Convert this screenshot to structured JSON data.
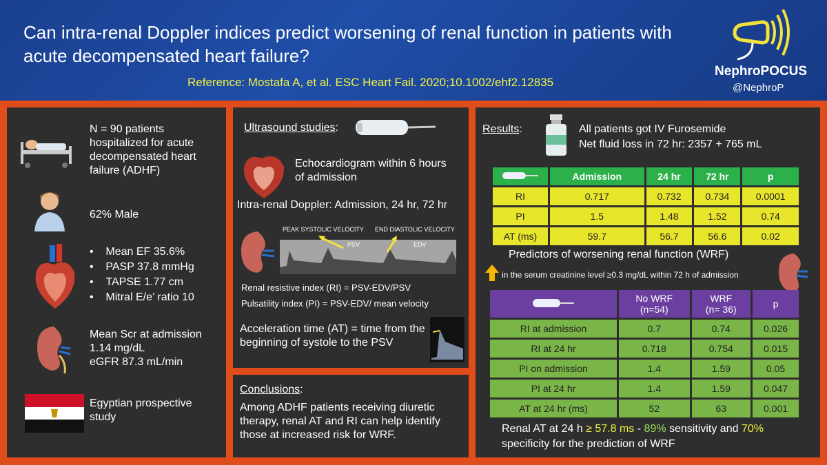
{
  "header": {
    "title": "Can intra-renal Doppler indices predict worsening of renal function in patients with acute decompensated heart failure?",
    "reference": "Reference: Mostafa A, et al. ESC Heart Fail. 2020;10.1002/ehf2.12835",
    "brand": "NephroPOCUS",
    "handle": "@NephroP"
  },
  "patients": {
    "n_text": "N = 90 patients hospitalized for acute decompensated heart failure (ADHF)",
    "male": "62% Male",
    "cardiac": [
      "Mean EF 35.6%",
      "PASP 37.8 mmHg",
      "TAPSE 1.77 cm",
      "Mitral E/e’ ratio 10"
    ],
    "renal": [
      "Mean Scr at admission",
      "1.14 mg/dL",
      "eGFR 87.3 mL/min"
    ],
    "study": "Egyptian prospective study"
  },
  "ultrasound": {
    "heading": "Ultrasound studies",
    "colon": ":",
    "echo": "Echocardiogram within 6 hours of admission",
    "doppler": "Intra-renal Doppler: Admission, 24 hr, 72 hr",
    "psv_label": "PEAK SYSTOLIC VELOCITY",
    "psv_short": "PSV",
    "edv_label": "END DIASTOLIC VELOCITY",
    "edv_short": "EDV",
    "ri": "Renal resistive index (RI) = PSV-EDV/PSV",
    "pi": "Pulsatility index (PI) = PSV-EDV/ mean velocity",
    "at": "Acceleration time (AT) = time from the beginning of systole to the PSV"
  },
  "conclusions": {
    "heading": "Conclusions",
    "colon": ":",
    "text": "Among ADHF patients receiving diuretic therapy, renal AT and RI can help identify those at increased risk for WRF."
  },
  "results": {
    "heading": "Results",
    "colon": ":",
    "line1": "All patients got IV Furosemide",
    "line2": "Net fluid loss in 72 hr: 2357 + 765 mL",
    "table1": {
      "headers": [
        "Admission",
        "24 hr",
        "72 hr",
        "p"
      ],
      "rows": [
        {
          "label": "RI",
          "values": [
            "0.717",
            "0.732",
            "0.734",
            "0.0001"
          ]
        },
        {
          "label": "PI",
          "values": [
            "1.5",
            "1.48",
            "1.52",
            "0.74"
          ]
        },
        {
          "label": "AT (ms)",
          "values": [
            "59.7",
            "56.7",
            "56.6",
            "0.02"
          ]
        }
      ]
    },
    "predictors_title": "Predictors of worsening renal function (WRF)",
    "predictors_note": "in the serum creatinine level ≥0.3 mg/dL within 72 h of admission",
    "table2": {
      "headers": [
        "No WRF\n(n=54)",
        "WRF\n(n= 36)",
        "p"
      ],
      "header_lines": [
        [
          "No WRF",
          "(n=54)"
        ],
        [
          "WRF",
          "(n= 36)"
        ],
        [
          "p"
        ]
      ],
      "rows": [
        {
          "label": "RI at admission",
          "values": [
            "0.7",
            "0.74",
            "0.026"
          ]
        },
        {
          "label": "RI at 24 hr",
          "values": [
            "0.718",
            "0.754",
            "0.015"
          ]
        },
        {
          "label": "PI on admission",
          "values": [
            "1.4",
            "1.59",
            "0.05"
          ]
        },
        {
          "label": "PI at 24 hr",
          "values": [
            "1.4",
            "1.59",
            "0.047"
          ]
        },
        {
          "label": "AT at 24 hr (ms)",
          "values": [
            "52",
            "63",
            "0.001"
          ]
        }
      ]
    },
    "bottom": {
      "pre": "Renal AT at 24 h ",
      "ms": "≥ 57.8 ms",
      "dash": " - ",
      "sens": "89%",
      "mid": " sensitivity and ",
      "spec": "70%",
      "post": "specificity for the prediction of WRF"
    }
  },
  "colors": {
    "background": "#e04d1b",
    "header": "#1f4ea8",
    "panel": "#2e2e2e",
    "accent_yellow": "#f2f244",
    "table_green": "#2bb04a",
    "table_purple": "#6b3fa0"
  }
}
